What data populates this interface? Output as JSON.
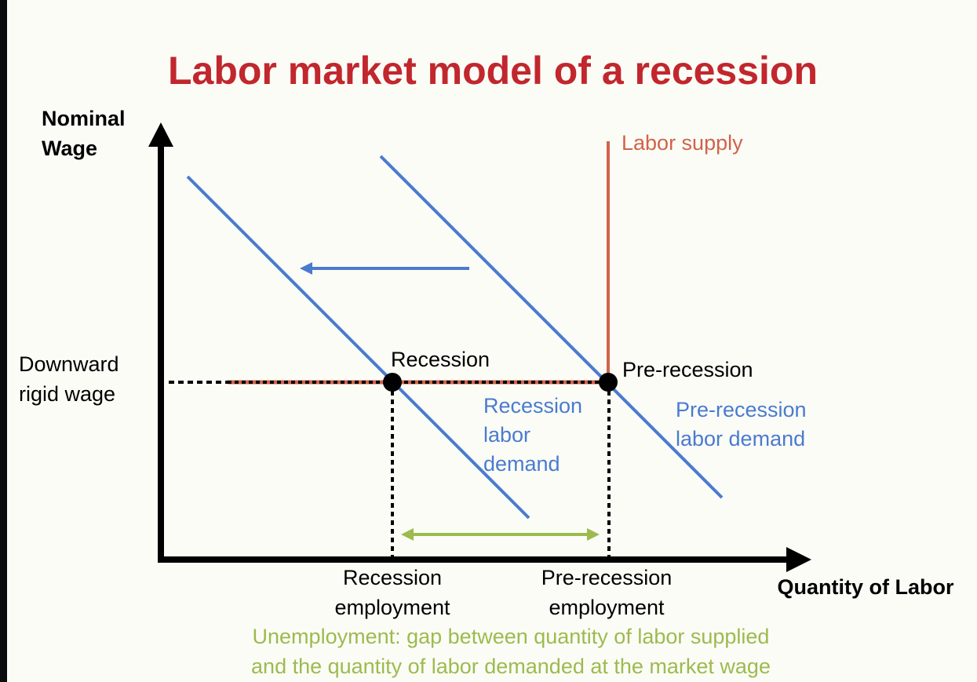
{
  "title": "Labor market model of a recession",
  "axes": {
    "y_label_line1": "Nominal",
    "y_label_line2": "Wage",
    "x_label": "Quantity of Labor"
  },
  "labels": {
    "wage_line1": "Downward",
    "wage_line2": "rigid wage",
    "labor_supply": "Labor supply",
    "recession_point": "Recession",
    "pre_recession_point": "Pre-recession",
    "recession_demand_line1": "Recession",
    "recession_demand_line2": "labor",
    "recession_demand_line3": "demand",
    "pre_demand_line1": "Pre-recession",
    "pre_demand_line2": "labor demand",
    "recession_emp_line1": "Recession",
    "recession_emp_line2": "employment",
    "pre_emp_line1": "Pre-recession",
    "pre_emp_line2": "employment"
  },
  "caption": {
    "line1": "Unemployment: gap between quantity of labor supplied",
    "line2": "and the quantity of labor demanded at the market wage"
  },
  "colors": {
    "title": "#c1272d",
    "demand": "#4a7bd0",
    "supply": "#d0634a",
    "gap": "#9cbb4e",
    "axis": "#000000"
  }
}
